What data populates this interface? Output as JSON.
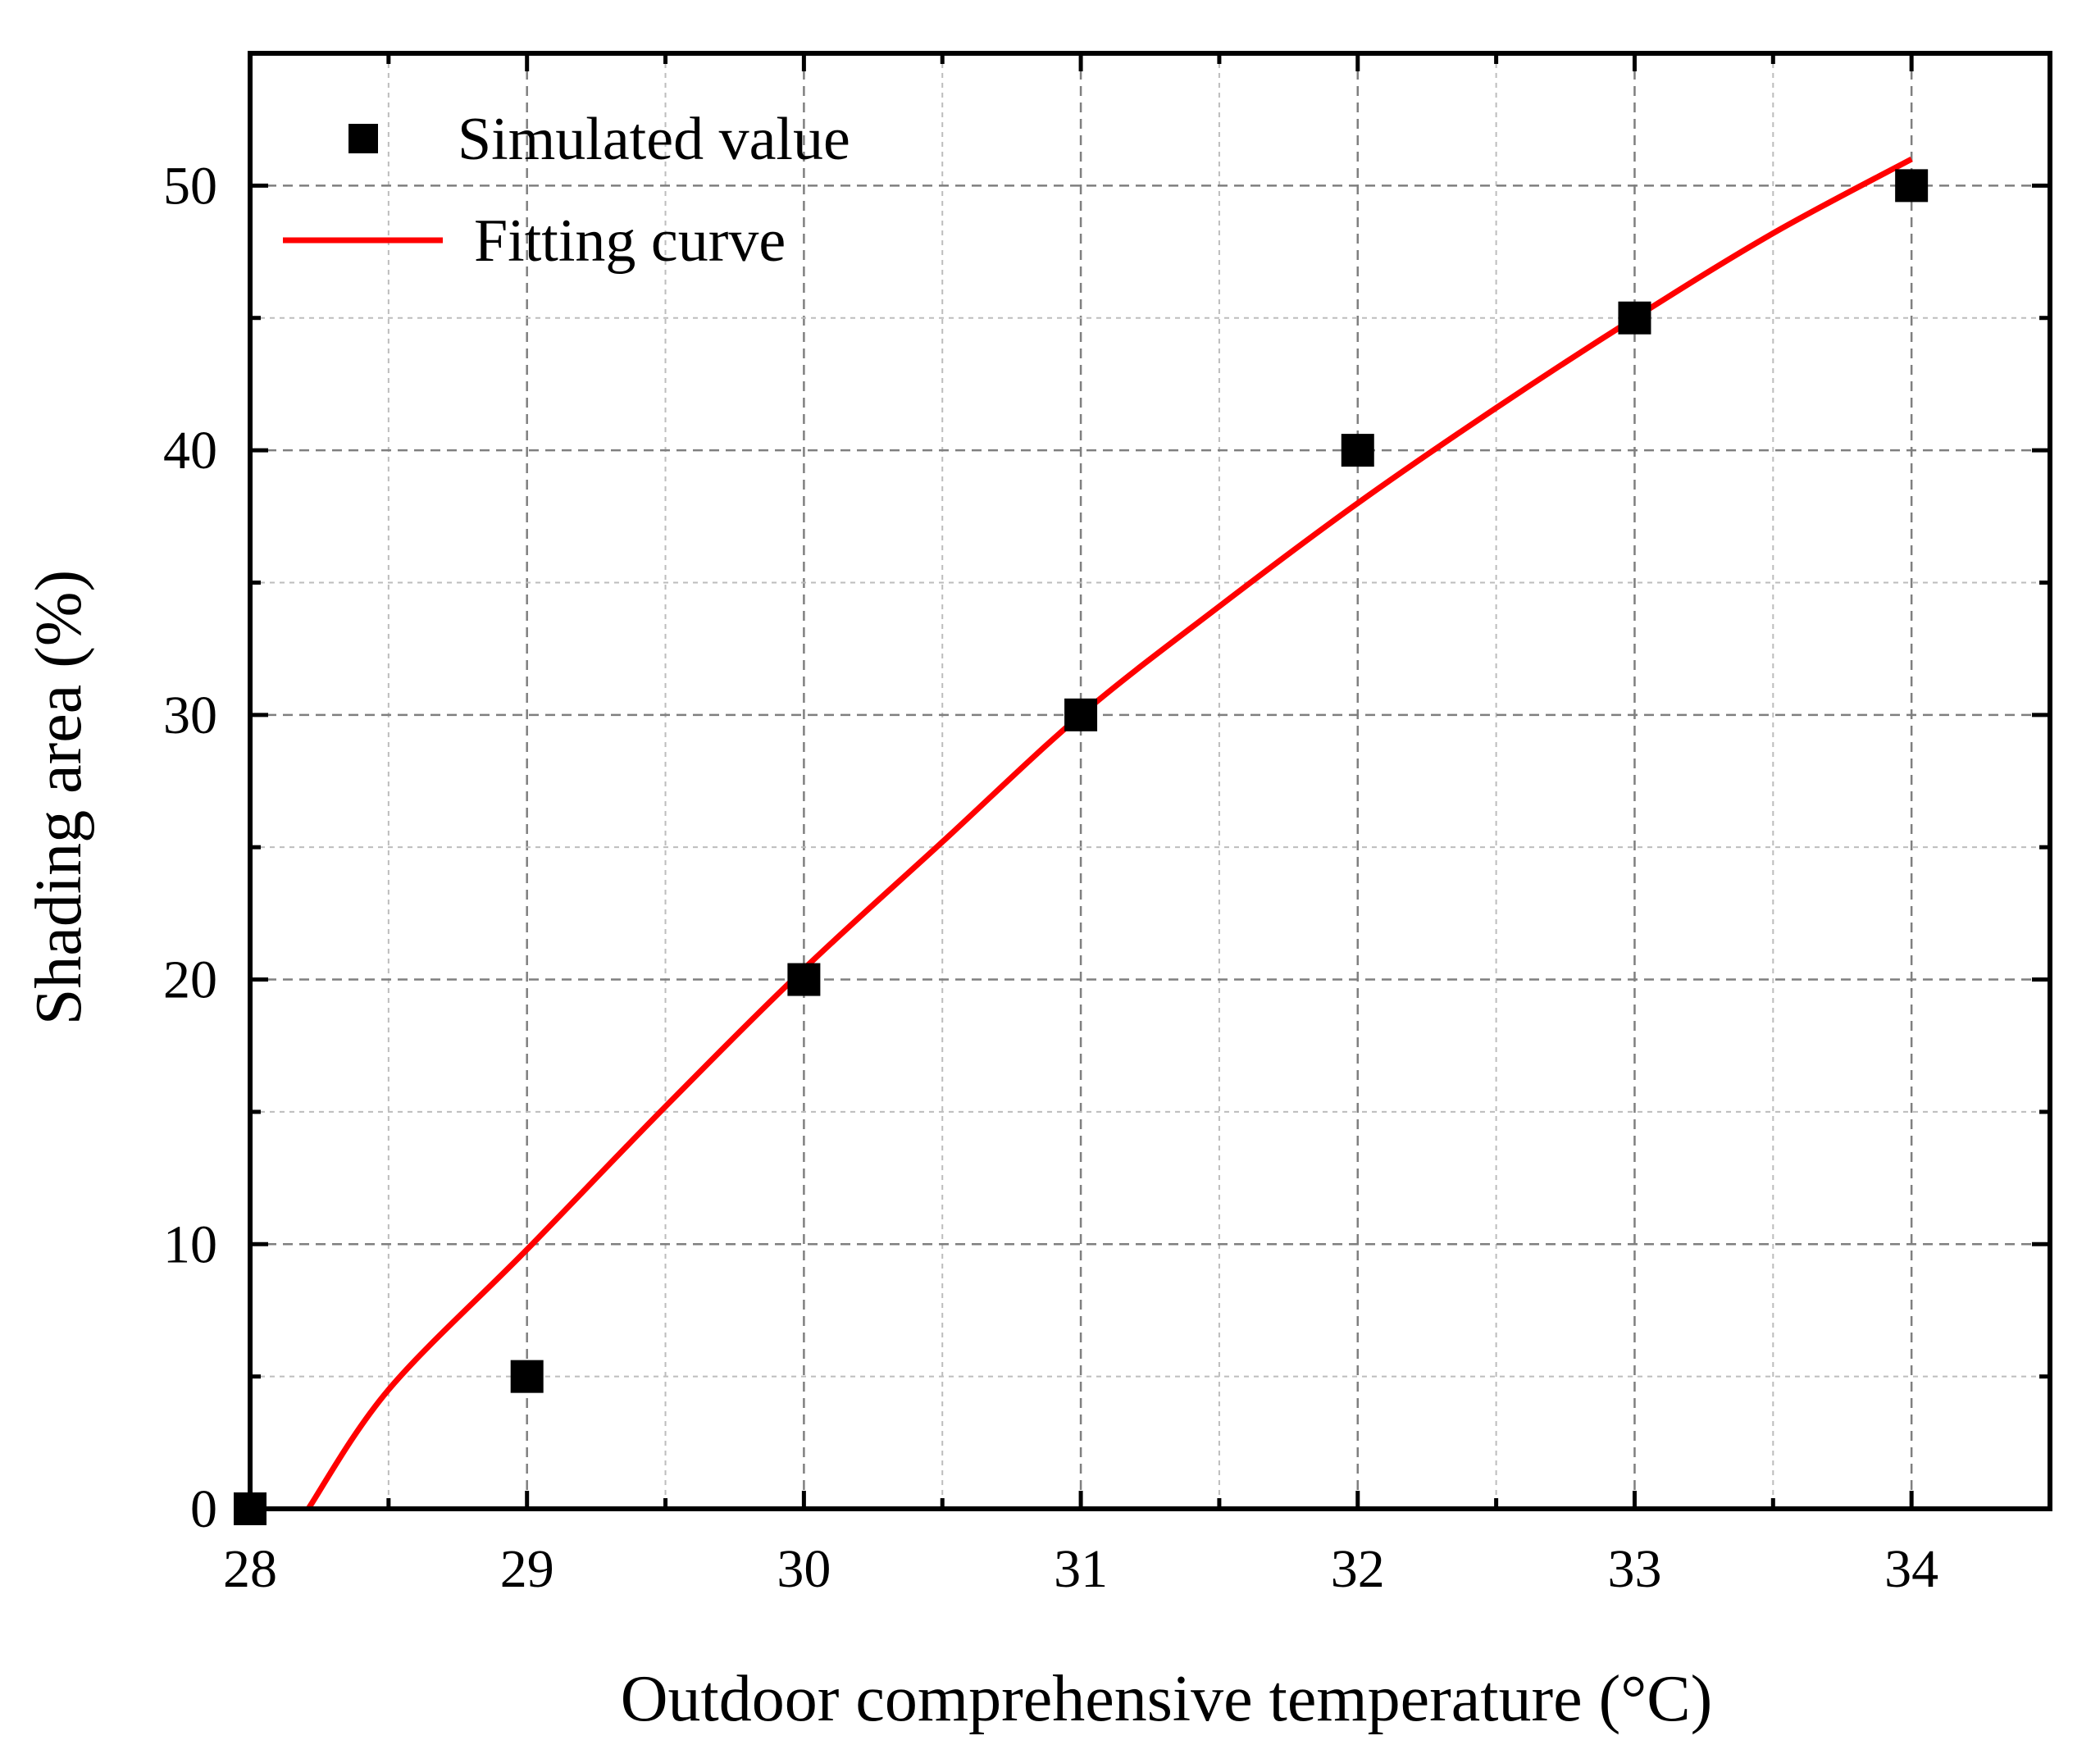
{
  "chart_data": {
    "type": "scatter",
    "title": "",
    "xlabel": "Outdoor comprehensive temperature (°C)",
    "ylabel": "Shading area (%)",
    "xlim": [
      28,
      34.5
    ],
    "ylim": [
      0,
      55
    ],
    "x_ticks": [
      28,
      29,
      30,
      31,
      32,
      33,
      34
    ],
    "y_ticks": [
      0,
      10,
      20,
      30,
      40,
      50
    ],
    "grid": true,
    "legend_position": "top-left",
    "series": [
      {
        "name": "Simulated value",
        "kind": "scatter",
        "marker": "square",
        "color": "#000000",
        "x": [
          28,
          29,
          30,
          31,
          32,
          33,
          34
        ],
        "y": [
          0,
          5,
          20,
          30,
          40,
          45,
          50
        ]
      },
      {
        "name": "Fitting curve",
        "kind": "line",
        "color": "#ff0000",
        "x": [
          28.21,
          28.5,
          29,
          29.5,
          30,
          30.5,
          31,
          31.5,
          32,
          32.5,
          33,
          33.5,
          34
        ],
        "y": [
          0,
          4.5,
          9.8,
          15.2,
          20.4,
          25.2,
          30.0,
          34.1,
          38.0,
          41.6,
          45.0,
          48.2,
          51.0
        ]
      }
    ]
  }
}
